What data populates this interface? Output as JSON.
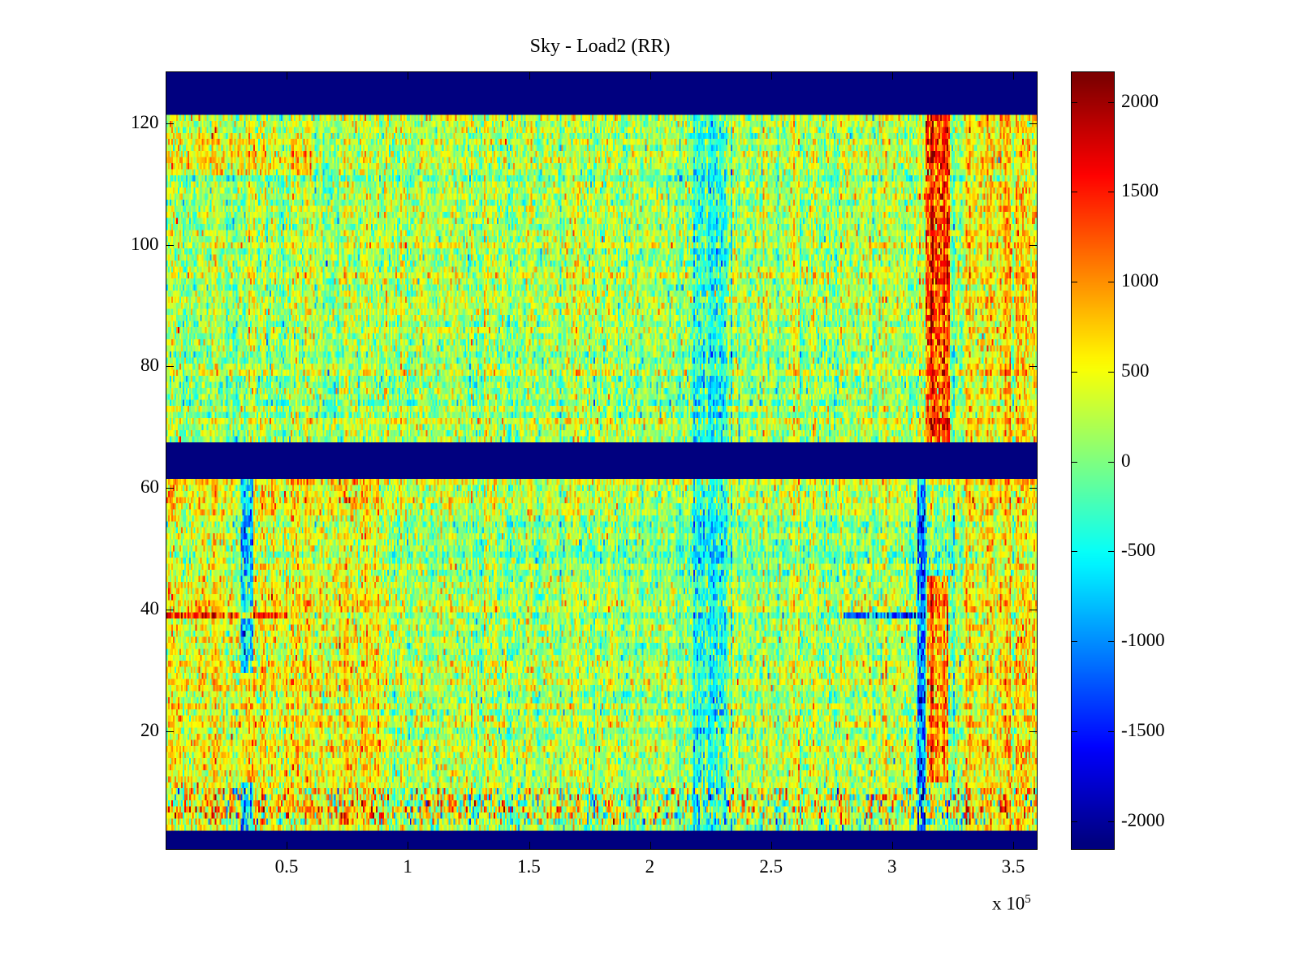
{
  "chart_data": {
    "type": "heatmap",
    "title": "Sky - Load2 (RR)",
    "xlabel": "",
    "ylabel": "",
    "x_multiplier_label": "x 10",
    "x_multiplier_exp": "5",
    "xlim": [
      0,
      3.6
    ],
    "ylim": [
      0.5,
      128.5
    ],
    "xticks": [
      0.5,
      1,
      1.5,
      2,
      2.5,
      3,
      3.5
    ],
    "xtick_labels": [
      "0.5",
      "1",
      "1.5",
      "2",
      "2.5",
      "3",
      "3.5"
    ],
    "yticks": [
      20,
      40,
      60,
      80,
      100,
      120
    ],
    "ytick_labels": [
      "20",
      "40",
      "60",
      "80",
      "100",
      "120"
    ],
    "colormap": "jet",
    "clim": [
      -2160,
      2170
    ],
    "colorbar_ticks": [
      2000,
      1500,
      1000,
      500,
      0,
      -500,
      -1000,
      -1500,
      -2000
    ],
    "colorbar_labels": [
      "2000",
      "1500",
      "1000",
      "500",
      "0",
      "-500",
      "-1000",
      "-1500",
      "-2000"
    ],
    "rows": 128,
    "columns": 540,
    "blank_row_ranges": [
      [
        1,
        3
      ],
      [
        62,
        67
      ],
      [
        122,
        128
      ]
    ],
    "base_value": 150,
    "noise_std": 330,
    "features": [
      {
        "kind": "vband",
        "x": [
          2.18,
          2.32
        ],
        "rows": [
          4,
          121
        ],
        "value": -650
      },
      {
        "kind": "vband",
        "x": [
          3.14,
          3.24
        ],
        "rows": [
          68,
          121
        ],
        "value": 1350
      },
      {
        "kind": "vband",
        "x": [
          3.15,
          3.23
        ],
        "rows": [
          12,
          45
        ],
        "value": 1000
      },
      {
        "kind": "vband",
        "x": [
          0.31,
          0.36
        ],
        "rows": [
          30,
          61
        ],
        "value": -1300
      },
      {
        "kind": "vband",
        "x": [
          0.31,
          0.36
        ],
        "rows": [
          4,
          11
        ],
        "value": -1300
      },
      {
        "kind": "vband",
        "x": [
          3.11,
          3.14
        ],
        "rows": [
          4,
          61
        ],
        "value": -1600
      },
      {
        "kind": "vband",
        "x": [
          3.3,
          3.6
        ],
        "rows": [
          4,
          121
        ],
        "value": 450
      },
      {
        "kind": "vband",
        "x": [
          0,
          0.9
        ],
        "rows": [
          4,
          61
        ],
        "value": 350
      },
      {
        "kind": "hband",
        "x": [
          0,
          0.5
        ],
        "rows": [
          39,
          39
        ],
        "value": 1300
      },
      {
        "kind": "hband",
        "x": [
          2.8,
          3.1
        ],
        "rows": [
          39,
          39
        ],
        "value": -1400
      },
      {
        "kind": "hband",
        "x": [
          0,
          0.6
        ],
        "rows": [
          112,
          118
        ],
        "value": 400
      },
      {
        "kind": "hband",
        "x": [
          0,
          3.6
        ],
        "rows": [
          5,
          10
        ],
        "value": 0,
        "extra_noise": 500
      }
    ]
  }
}
